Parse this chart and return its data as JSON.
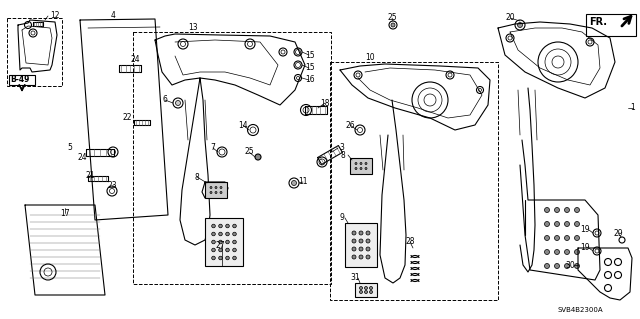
{
  "bg_color": "#ffffff",
  "line_color": "#000000",
  "diagram_code": "SVB4B2300A",
  "figsize": [
    6.4,
    3.19
  ],
  "dpi": 100,
  "gray": "#888888",
  "light_gray": "#cccccc",
  "mid_gray": "#aaaaaa"
}
